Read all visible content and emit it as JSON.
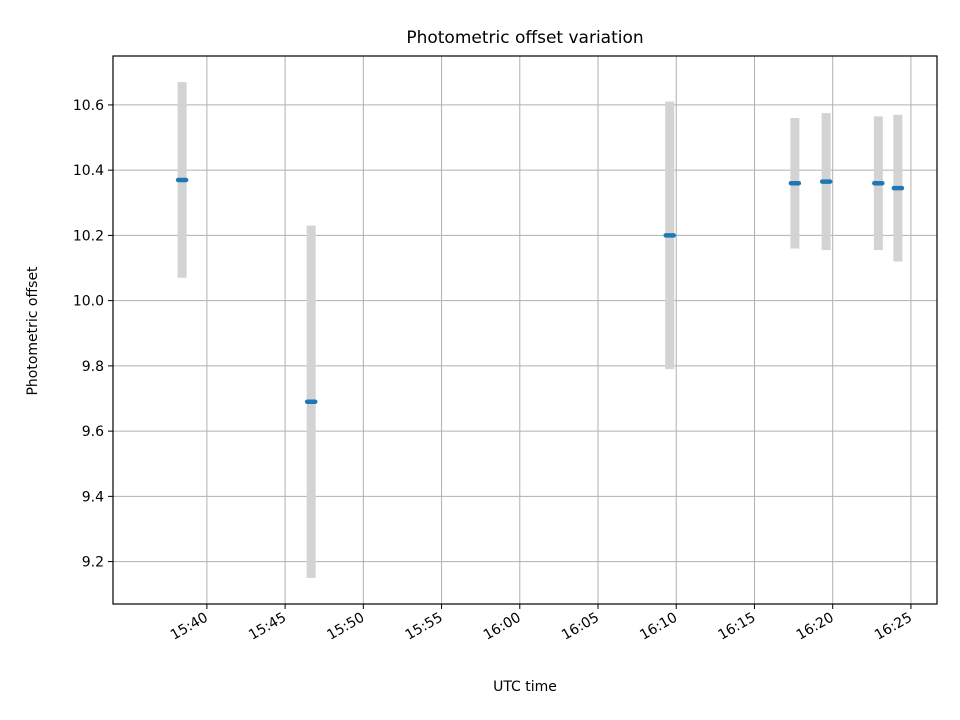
{
  "chart_data": {
    "type": "scatter",
    "title": "Photometric offset variation",
    "xlabel": "UTC time",
    "ylabel": "Photometric offset",
    "x_ticks": [
      "15:40",
      "15:45",
      "15:50",
      "15:55",
      "16:00",
      "16:05",
      "16:10",
      "16:15",
      "16:20",
      "16:25"
    ],
    "y_ticks": [
      "9.2",
      "9.4",
      "9.6",
      "9.8",
      "10.0",
      "10.2",
      "10.4",
      "10.6"
    ],
    "xlim": [
      "15:34:00",
      "16:26:40"
    ],
    "ylim": [
      9.07,
      10.75
    ],
    "grid": true,
    "series": [
      {
        "points": [
          {
            "x": "15:38:25",
            "y": 10.37,
            "err": 0.3
          },
          {
            "x": "15:46:40",
            "y": 9.69,
            "err": 0.54
          },
          {
            "x": "16:09:35",
            "y": 10.2,
            "err": 0.41
          },
          {
            "x": "16:17:35",
            "y": 10.36,
            "err": 0.2
          },
          {
            "x": "16:19:35",
            "y": 10.365,
            "err": 0.21
          },
          {
            "x": "16:22:55",
            "y": 10.36,
            "err": 0.205
          },
          {
            "x": "16:24:10",
            "y": 10.345,
            "err": 0.225
          }
        ]
      }
    ],
    "colors": {
      "marker": "#1f77b4",
      "errorbar": "#d3d3d3",
      "grid": "#b0b0b0"
    }
  }
}
